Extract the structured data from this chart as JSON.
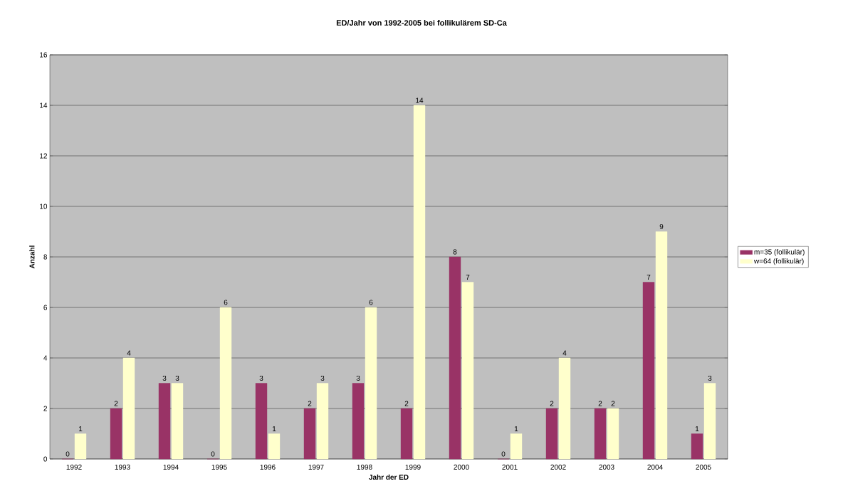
{
  "chart_data": {
    "type": "bar",
    "title": "ED/Jahr von 1992-2005 bei follikulärem SD-Ca",
    "xlabel": "Jahr der ED",
    "ylabel": "Anzahl",
    "categories": [
      "1992",
      "1993",
      "1994",
      "1995",
      "1996",
      "1997",
      "1998",
      "1999",
      "2000",
      "2001",
      "2002",
      "2003",
      "2004",
      "2005"
    ],
    "series": [
      {
        "name": "m=35 (follikulär)",
        "color": "#993366",
        "values": [
          0,
          2,
          3,
          0,
          3,
          2,
          3,
          2,
          8,
          0,
          2,
          2,
          7,
          1
        ]
      },
      {
        "name": "w=64 (follikulär)",
        "color": "#ffffcc",
        "values": [
          1,
          4,
          3,
          6,
          1,
          3,
          6,
          14,
          7,
          1,
          4,
          2,
          9,
          3
        ]
      }
    ],
    "ylim": [
      0,
      16
    ],
    "yticks": [
      0,
      2,
      4,
      6,
      8,
      10,
      12,
      14,
      16
    ],
    "grid": "y",
    "legend": "right",
    "data_labels": true
  }
}
